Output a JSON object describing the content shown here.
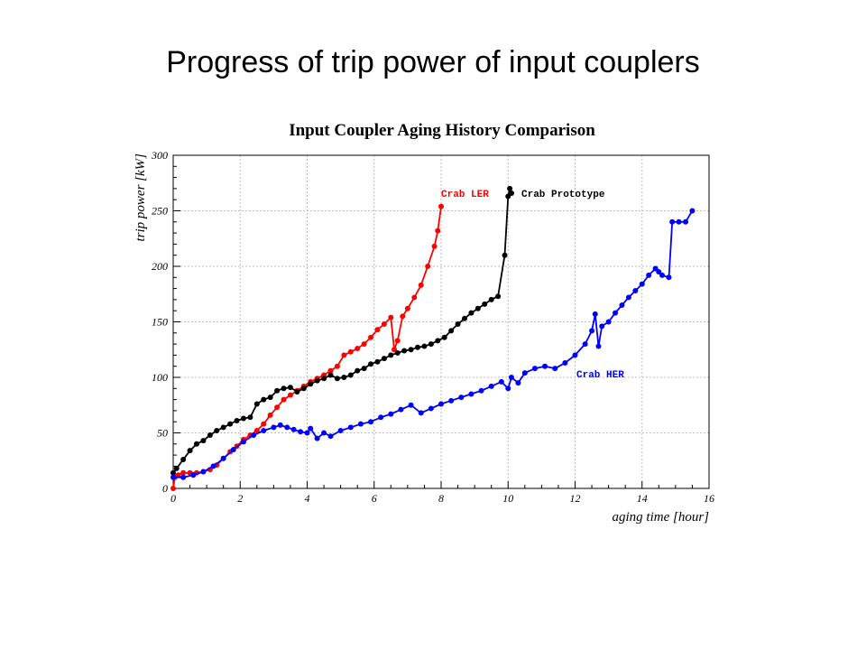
{
  "slide": {
    "title": "Progress of trip power of input couplers"
  },
  "chart_data": {
    "type": "line",
    "title": "Input Coupler Aging History Comparison",
    "xlabel": "aging time [hour]",
    "ylabel": "trip power [kW]",
    "xlim": [
      0,
      16
    ],
    "ylim": [
      0,
      300
    ],
    "xticks": [
      0,
      2,
      4,
      6,
      8,
      10,
      12,
      14,
      16
    ],
    "yticks": [
      0,
      50,
      100,
      150,
      200,
      250,
      300
    ],
    "grid": true,
    "series": [
      {
        "name": "Crab LER",
        "color": "#ff0000",
        "x": [
          0.0,
          0.05,
          0.15,
          0.3,
          0.5,
          0.7,
          0.9,
          1.1,
          1.3,
          1.5,
          1.7,
          1.9,
          2.1,
          2.3,
          2.5,
          2.7,
          2.9,
          3.1,
          3.3,
          3.5,
          3.7,
          3.9,
          4.1,
          4.3,
          4.5,
          4.7,
          4.9,
          5.1,
          5.3,
          5.5,
          5.7,
          5.9,
          6.1,
          6.3,
          6.5,
          6.6,
          6.7,
          6.85,
          7.0,
          7.2,
          7.4,
          7.6,
          7.8,
          7.9,
          8.0
        ],
        "y": [
          0,
          10,
          12,
          14,
          14,
          14,
          15,
          17,
          21,
          27,
          33,
          38,
          44,
          48,
          52,
          58,
          66,
          73,
          80,
          84,
          88,
          92,
          96,
          99,
          102,
          106,
          110,
          120,
          123,
          126,
          130,
          136,
          143,
          148,
          154,
          125,
          133,
          155,
          162,
          172,
          183,
          200,
          218,
          232,
          254
        ]
      },
      {
        "name": "Crab Prototype",
        "color": "#000000",
        "x": [
          0.0,
          0.1,
          0.3,
          0.5,
          0.7,
          0.9,
          1.1,
          1.3,
          1.5,
          1.7,
          1.9,
          2.1,
          2.3,
          2.5,
          2.7,
          2.9,
          3.1,
          3.3,
          3.5,
          3.7,
          3.9,
          4.1,
          4.3,
          4.5,
          4.7,
          4.9,
          5.1,
          5.3,
          5.5,
          5.7,
          5.9,
          6.1,
          6.3,
          6.5,
          6.7,
          6.9,
          7.1,
          7.3,
          7.5,
          7.7,
          7.9,
          8.1,
          8.3,
          8.5,
          8.7,
          8.9,
          9.1,
          9.3,
          9.5,
          9.7,
          9.9,
          10.0,
          10.05
        ],
        "y": [
          14,
          18,
          26,
          34,
          40,
          43,
          48,
          52,
          55,
          58,
          61,
          63,
          64,
          76,
          80,
          82,
          88,
          90,
          91,
          87,
          90,
          94,
          97,
          99,
          102,
          99,
          100,
          102,
          106,
          108,
          112,
          114,
          117,
          120,
          122,
          124,
          125,
          127,
          128,
          130,
          133,
          136,
          142,
          148,
          153,
          158,
          162,
          166,
          170,
          173,
          210,
          263,
          270
        ]
      },
      {
        "name": "Crab HER",
        "color": "#0000ff",
        "x": [
          0.0,
          0.3,
          0.6,
          0.9,
          1.2,
          1.5,
          1.8,
          2.1,
          2.4,
          2.7,
          3.0,
          3.2,
          3.4,
          3.6,
          3.8,
          4.0,
          4.1,
          4.3,
          4.5,
          4.7,
          5.0,
          5.3,
          5.6,
          5.9,
          6.2,
          6.5,
          6.8,
          7.1,
          7.4,
          7.7,
          8.0,
          8.3,
          8.6,
          8.9,
          9.2,
          9.5,
          9.8,
          10.0,
          10.1,
          10.3,
          10.5,
          10.8,
          11.1,
          11.4,
          11.7,
          12.0,
          12.3,
          12.5,
          12.6,
          12.7,
          12.8,
          13.0,
          13.2,
          13.4,
          13.6,
          13.8,
          14.0,
          14.2,
          14.4,
          14.5,
          14.6,
          14.8,
          14.9,
          15.1,
          15.3,
          15.5
        ],
        "y": [
          10,
          10,
          12,
          15,
          20,
          27,
          35,
          42,
          48,
          52,
          55,
          57,
          55,
          53,
          51,
          50,
          54,
          45,
          50,
          47,
          52,
          55,
          58,
          60,
          64,
          67,
          71,
          75,
          68,
          72,
          76,
          79,
          82,
          85,
          88,
          92,
          96,
          90,
          100,
          95,
          104,
          108,
          110,
          108,
          113,
          120,
          130,
          142,
          157,
          128,
          146,
          150,
          158,
          165,
          172,
          178,
          184,
          192,
          198,
          195,
          192,
          190,
          240,
          240,
          240,
          250
        ]
      }
    ]
  }
}
